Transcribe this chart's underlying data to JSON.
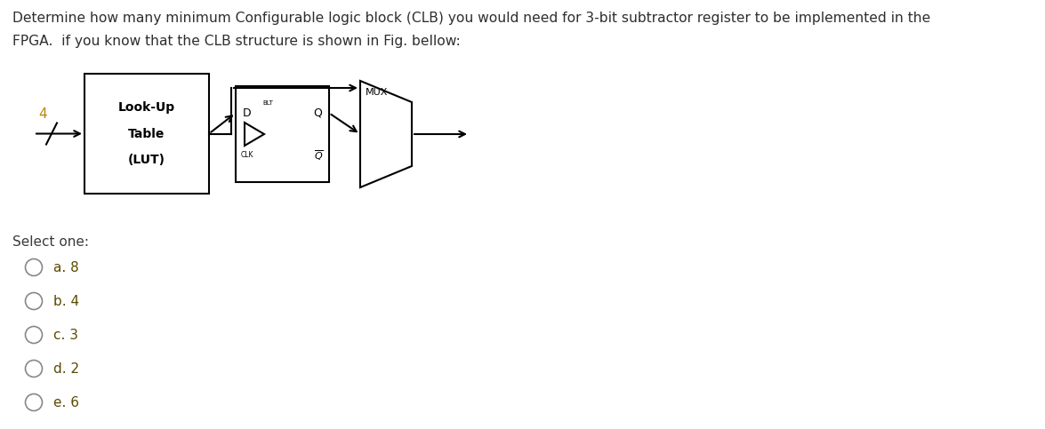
{
  "title_line1": "Determine how many minimum Configurable logic block (CLB) you would need for 3-bit subtractor register to be implemented in the",
  "title_line2": "FPGA.  if you know that the CLB structure is shown in Fig. bellow:",
  "title_color": "#2E2E2E",
  "select_one_label": "Select one:",
  "options": [
    "a. 8",
    "b. 4",
    "c. 3",
    "d. 2",
    "e. 6"
  ],
  "option_text_color": "#5a4a00",
  "lut_label_lines": [
    "Look-Up",
    "Table",
    "(LUT)"
  ],
  "input_label": "4",
  "bg_color": "#ffffff",
  "text_color": "#1a1a1a",
  "diagram_line_color": "#000000",
  "input_label_color": "#b8860b"
}
